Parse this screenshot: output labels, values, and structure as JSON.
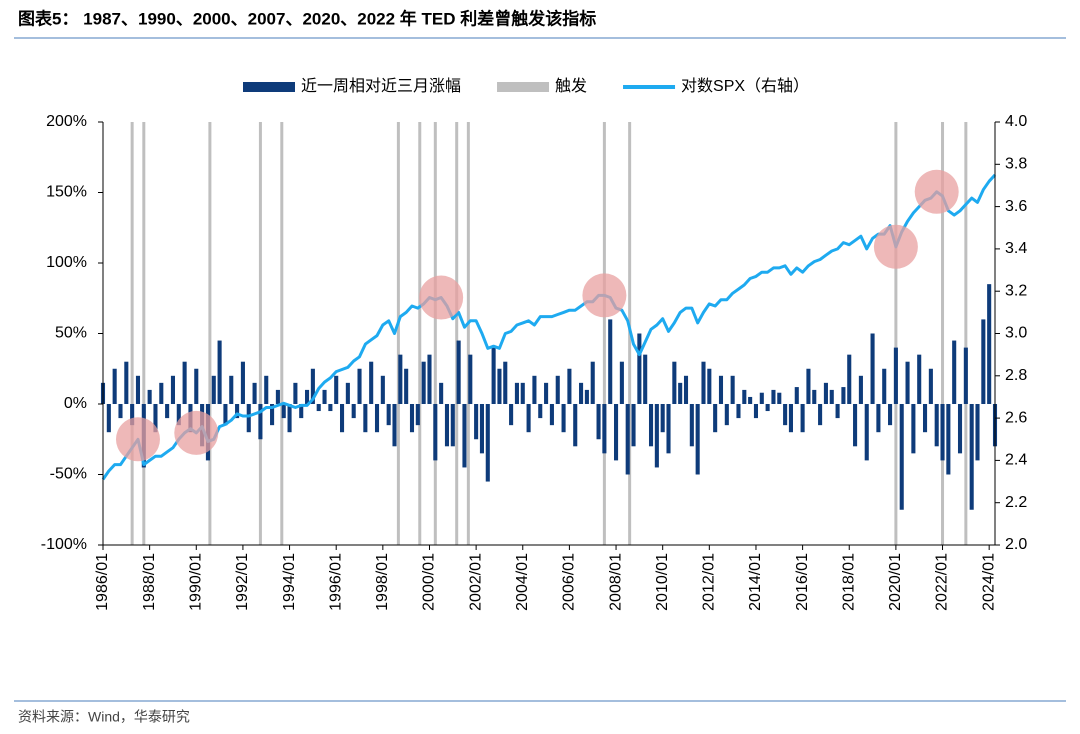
{
  "title": "图表5： 1987、1990、2000、2007、2020、2022 年 TED 利差曾触发该指标",
  "source": "资料来源：Wind，华泰研究",
  "chart_data": {
    "type": "bar",
    "x": [
      "1986/01",
      "1986/04",
      "1986/07",
      "1986/10",
      "1987/01",
      "1987/04",
      "1987/07",
      "1987/10",
      "1988/01",
      "1988/04",
      "1988/07",
      "1988/10",
      "1989/01",
      "1989/04",
      "1989/07",
      "1989/10",
      "1990/01",
      "1990/04",
      "1990/07",
      "1990/10",
      "1991/01",
      "1991/04",
      "1991/07",
      "1991/10",
      "1992/01",
      "1992/04",
      "1992/07",
      "1992/10",
      "1993/01",
      "1993/04",
      "1993/07",
      "1993/10",
      "1994/01",
      "1994/04",
      "1994/07",
      "1994/10",
      "1995/01",
      "1995/04",
      "1995/07",
      "1995/10",
      "1996/01",
      "1996/04",
      "1996/07",
      "1996/10",
      "1997/01",
      "1997/04",
      "1997/07",
      "1997/10",
      "1998/01",
      "1998/04",
      "1998/07",
      "1998/10",
      "1999/01",
      "1999/04",
      "1999/07",
      "1999/10",
      "2000/01",
      "2000/04",
      "2000/07",
      "2000/10",
      "2001/01",
      "2001/04",
      "2001/07",
      "2001/10",
      "2002/01",
      "2002/04",
      "2002/07",
      "2002/10",
      "2003/01",
      "2003/04",
      "2003/07",
      "2003/10",
      "2004/01",
      "2004/04",
      "2004/07",
      "2004/10",
      "2005/01",
      "2005/04",
      "2005/07",
      "2005/10",
      "2006/01",
      "2006/04",
      "2006/07",
      "2006/10",
      "2007/01",
      "2007/04",
      "2007/07",
      "2007/10",
      "2008/01",
      "2008/04",
      "2008/07",
      "2008/10",
      "2009/01",
      "2009/04",
      "2009/07",
      "2009/10",
      "2010/01",
      "2010/04",
      "2010/07",
      "2010/10",
      "2011/01",
      "2011/04",
      "2011/07",
      "2011/10",
      "2012/01",
      "2012/04",
      "2012/07",
      "2012/10",
      "2013/01",
      "2013/04",
      "2013/07",
      "2013/10",
      "2014/01",
      "2014/04",
      "2014/07",
      "2014/10",
      "2015/01",
      "2015/04",
      "2015/07",
      "2015/10",
      "2016/01",
      "2016/04",
      "2016/07",
      "2016/10",
      "2017/01",
      "2017/04",
      "2017/07",
      "2017/10",
      "2018/01",
      "2018/04",
      "2018/07",
      "2018/10",
      "2019/01",
      "2019/04",
      "2019/07",
      "2019/10",
      "2020/01",
      "2020/04",
      "2020/07",
      "2020/10",
      "2021/01",
      "2021/04",
      "2021/07",
      "2021/10",
      "2022/01",
      "2022/04",
      "2022/07",
      "2022/10",
      "2023/01",
      "2023/04",
      "2023/07",
      "2023/10",
      "2024/01",
      "2024/04"
    ],
    "series": [
      {
        "name": "近一周相对近三月涨幅",
        "color": "#0e3b7a",
        "type": "bar",
        "values": [
          15,
          -20,
          25,
          -10,
          30,
          -15,
          20,
          -45,
          10,
          -20,
          15,
          -10,
          20,
          -15,
          30,
          -20,
          25,
          -30,
          -40,
          20,
          45,
          -15,
          20,
          -10,
          30,
          -20,
          15,
          -25,
          20,
          -15,
          10,
          -10,
          -20,
          15,
          -10,
          10,
          25,
          -5,
          10,
          -5,
          20,
          -20,
          15,
          -10,
          25,
          -20,
          30,
          -20,
          20,
          -15,
          -30,
          35,
          25,
          -20,
          -15,
          30,
          35,
          -40,
          15,
          -30,
          -30,
          45,
          -45,
          35,
          -25,
          -35,
          -55,
          40,
          25,
          30,
          -15,
          15,
          15,
          -20,
          20,
          -10,
          15,
          -15,
          20,
          -20,
          25,
          -30,
          15,
          10,
          30,
          -25,
          -35,
          60,
          -40,
          30,
          -50,
          -30,
          50,
          35,
          -30,
          -45,
          -20,
          -35,
          30,
          15,
          20,
          -30,
          -50,
          30,
          25,
          -20,
          20,
          -15,
          20,
          -10,
          10,
          5,
          -10,
          8,
          -5,
          10,
          8,
          -15,
          -20,
          12,
          -20,
          25,
          10,
          -15,
          15,
          10,
          -10,
          12,
          35,
          -30,
          20,
          -40,
          50,
          -20,
          25,
          -15,
          40,
          -75,
          30,
          -35,
          35,
          -20,
          25,
          -30,
          -40,
          -50,
          45,
          -35,
          40,
          -75,
          -40,
          60,
          85,
          -30
        ]
      },
      {
        "name": "对数SPX（右轴）",
        "color": "#1eaaf0",
        "type": "line",
        "axis": "y2",
        "values": [
          2.31,
          2.35,
          2.38,
          2.38,
          2.42,
          2.46,
          2.5,
          2.38,
          2.4,
          2.42,
          2.42,
          2.44,
          2.46,
          2.5,
          2.53,
          2.55,
          2.53,
          2.56,
          2.49,
          2.5,
          2.56,
          2.57,
          2.59,
          2.62,
          2.61,
          2.61,
          2.62,
          2.63,
          2.65,
          2.65,
          2.66,
          2.67,
          2.66,
          2.65,
          2.66,
          2.66,
          2.69,
          2.74,
          2.77,
          2.79,
          2.82,
          2.83,
          2.84,
          2.87,
          2.89,
          2.95,
          2.97,
          2.99,
          3.04,
          3.06,
          3.0,
          3.08,
          3.1,
          3.13,
          3.12,
          3.14,
          3.17,
          3.16,
          3.17,
          3.13,
          3.07,
          3.1,
          3.03,
          3.06,
          3.06,
          3.0,
          2.93,
          2.94,
          2.93,
          3.0,
          3.01,
          3.04,
          3.05,
          3.06,
          3.04,
          3.08,
          3.08,
          3.08,
          3.09,
          3.1,
          3.11,
          3.11,
          3.13,
          3.15,
          3.15,
          3.18,
          3.18,
          3.17,
          3.12,
          3.11,
          3.06,
          2.95,
          2.9,
          2.96,
          3.02,
          3.04,
          3.07,
          3.01,
          3.05,
          3.1,
          3.12,
          3.12,
          3.05,
          3.1,
          3.14,
          3.13,
          3.16,
          3.16,
          3.19,
          3.21,
          3.23,
          3.26,
          3.27,
          3.29,
          3.29,
          3.31,
          3.31,
          3.32,
          3.28,
          3.31,
          3.29,
          3.32,
          3.34,
          3.35,
          3.37,
          3.39,
          3.4,
          3.43,
          3.42,
          3.44,
          3.46,
          3.4,
          3.45,
          3.47,
          3.47,
          3.51,
          3.41,
          3.48,
          3.53,
          3.57,
          3.6,
          3.63,
          3.64,
          3.67,
          3.65,
          3.58,
          3.56,
          3.58,
          3.61,
          3.64,
          3.62,
          3.68,
          3.72,
          3.75
        ]
      }
    ],
    "trigger": {
      "name": "触发",
      "color": "#bfbfbf",
      "x": [
        "1987/04",
        "1987/10",
        "1990/08",
        "1992/10",
        "1993/09",
        "1998/09",
        "1999/08",
        "2000/04",
        "2001/03",
        "2001/09",
        "2007/07",
        "2008/08",
        "2020/01",
        "2022/01",
        "2023/01"
      ]
    },
    "highlight_x": [
      "1987/07",
      "1990/01",
      "2000/07",
      "2007/07",
      "2020/01",
      "2021/10"
    ],
    "highlight_color": "#e8a0a0",
    "xlim": [
      "1986/01",
      "2024/04"
    ],
    "xticks": [
      "1986/01",
      "1988/01",
      "1990/01",
      "1992/01",
      "1994/01",
      "1996/01",
      "1998/01",
      "2000/01",
      "2002/01",
      "2004/01",
      "2006/01",
      "2008/01",
      "2010/01",
      "2012/01",
      "2014/01",
      "2016/01",
      "2018/01",
      "2020/01",
      "2022/01",
      "2024/01"
    ],
    "ylim": [
      -100,
      200
    ],
    "yticks": [
      {
        "value": -100,
        "label": "-100%"
      },
      {
        "value": -50,
        "label": "-50%"
      },
      {
        "value": 0,
        "label": "0%"
      },
      {
        "value": 50,
        "label": "50%"
      },
      {
        "value": 100,
        "label": "100%"
      },
      {
        "value": 150,
        "label": "150%"
      },
      {
        "value": 200,
        "label": "200%"
      }
    ],
    "y2lim": [
      2,
      4
    ],
    "y2ticks": [
      {
        "value": 2,
        "label": "2.0"
      },
      {
        "value": 2.2,
        "label": "2.2"
      },
      {
        "value": 2.4,
        "label": "2.4"
      },
      {
        "value": 2.6,
        "label": "2.6"
      },
      {
        "value": 2.8,
        "label": "2.8"
      },
      {
        "value": 3,
        "label": "3.0"
      },
      {
        "value": 3.2,
        "label": "3.2"
      },
      {
        "value": 3.4,
        "label": "3.4"
      },
      {
        "value": 3.6,
        "label": "3.6"
      },
      {
        "value": 3.8,
        "label": "3.8"
      },
      {
        "value": 4,
        "label": "4.0"
      }
    ]
  }
}
